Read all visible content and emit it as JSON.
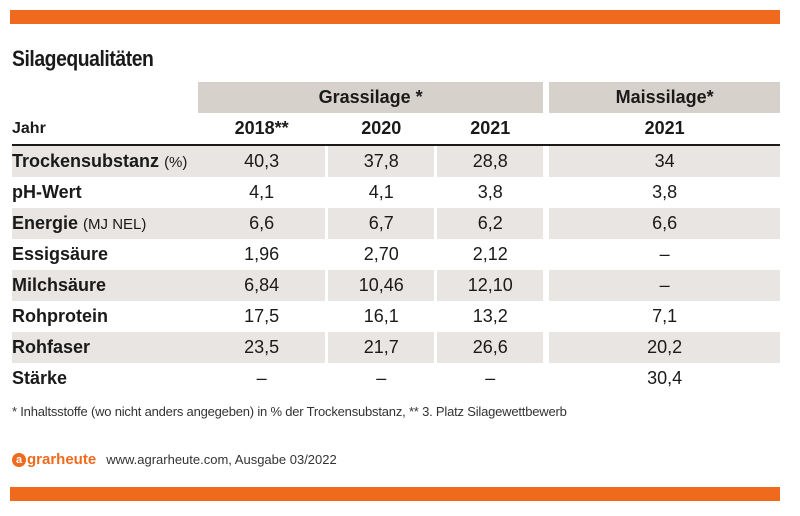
{
  "title": "Silagequalitäten",
  "groups": {
    "grassilage": "Grassilage *",
    "maissilage": "Maissilage*"
  },
  "years": {
    "label": "Jahr",
    "y1": "2018**",
    "y2": "2020",
    "y3": "2021",
    "y4": "2021"
  },
  "rows": [
    {
      "label": "Trockensubstanz",
      "unit": "(%)",
      "values": [
        "40,3",
        "37,8",
        "28,8",
        "34"
      ]
    },
    {
      "label": "pH-Wert",
      "unit": "",
      "values": [
        "4,1",
        "4,1",
        "3,8",
        "3,8"
      ]
    },
    {
      "label": "Energie",
      "unit": "(MJ NEL)",
      "values": [
        "6,6",
        "6,7",
        "6,2",
        "6,6"
      ]
    },
    {
      "label": "Essigsäure",
      "unit": "",
      "values": [
        "1,96",
        "2,70",
        "2,12",
        "–"
      ]
    },
    {
      "label": "Milchsäure",
      "unit": "",
      "values": [
        "6,84",
        "10,46",
        "12,10",
        "–"
      ]
    },
    {
      "label": "Rohprotein",
      "unit": "",
      "values": [
        "17,5",
        "16,1",
        "13,2",
        "7,1"
      ]
    },
    {
      "label": "Rohfaser",
      "unit": "",
      "values": [
        "23,5",
        "21,7",
        "26,6",
        "20,2"
      ]
    },
    {
      "label": "Stärke",
      "unit": "",
      "values": [
        "–",
        "–",
        "–",
        "30,4"
      ]
    }
  ],
  "footnote": "* Inhaltsstoffe (wo nicht anders angegeben) in % der Trockensubstanz, ** 3. Platz Silagewettbewerb",
  "source": {
    "logo_text": "agrarheute",
    "logo_initial": "a",
    "logo_rest": "grarheute",
    "text": "www.agrarheute.com, Ausgabe 03/2022"
  },
  "colors": {
    "accent": "#ef6a1c",
    "header_bg": "#d6d1cb",
    "row_shade": "#e8e5e2"
  }
}
